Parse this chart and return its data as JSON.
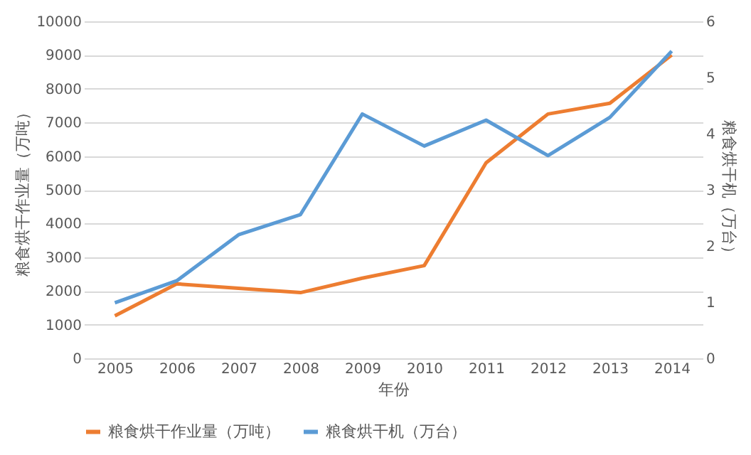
{
  "chart_data": {
    "type": "line",
    "xlabel": "年份",
    "ylabel": "粮食烘干作业量（万吨）",
    "y2label": "粮食烘干机（万台）",
    "categories": [
      "2005",
      "2006",
      "2007",
      "2008",
      "2009",
      "2010",
      "2011",
      "2012",
      "2013",
      "2014"
    ],
    "series": [
      {
        "name": "粮食烘干作业量（万吨）",
        "color": "#ed7d31",
        "values": [
          1260,
          2210,
          2080,
          1950,
          2380,
          2750,
          5800,
          7250,
          7570,
          9000
        ]
      },
      {
        "name": "粮食烘干机（万台）",
        "color": "#5b9bd5",
        "axis": "y2",
        "values": [
          0.99,
          1.38,
          2.2,
          2.56,
          4.35,
          3.78,
          4.24,
          3.61,
          4.29,
          5.47
        ]
      }
    ],
    "ylim": [
      0,
      10000
    ],
    "yticks": [
      0,
      1000,
      2000,
      3000,
      4000,
      5000,
      6000,
      7000,
      8000,
      9000,
      10000
    ],
    "y2lim": [
      0,
      6
    ],
    "y2ticks": [
      0,
      1,
      2,
      3,
      4,
      5,
      6
    ],
    "grid": "y",
    "legend": "bottom",
    "marker": "none",
    "line_style": "solid"
  }
}
